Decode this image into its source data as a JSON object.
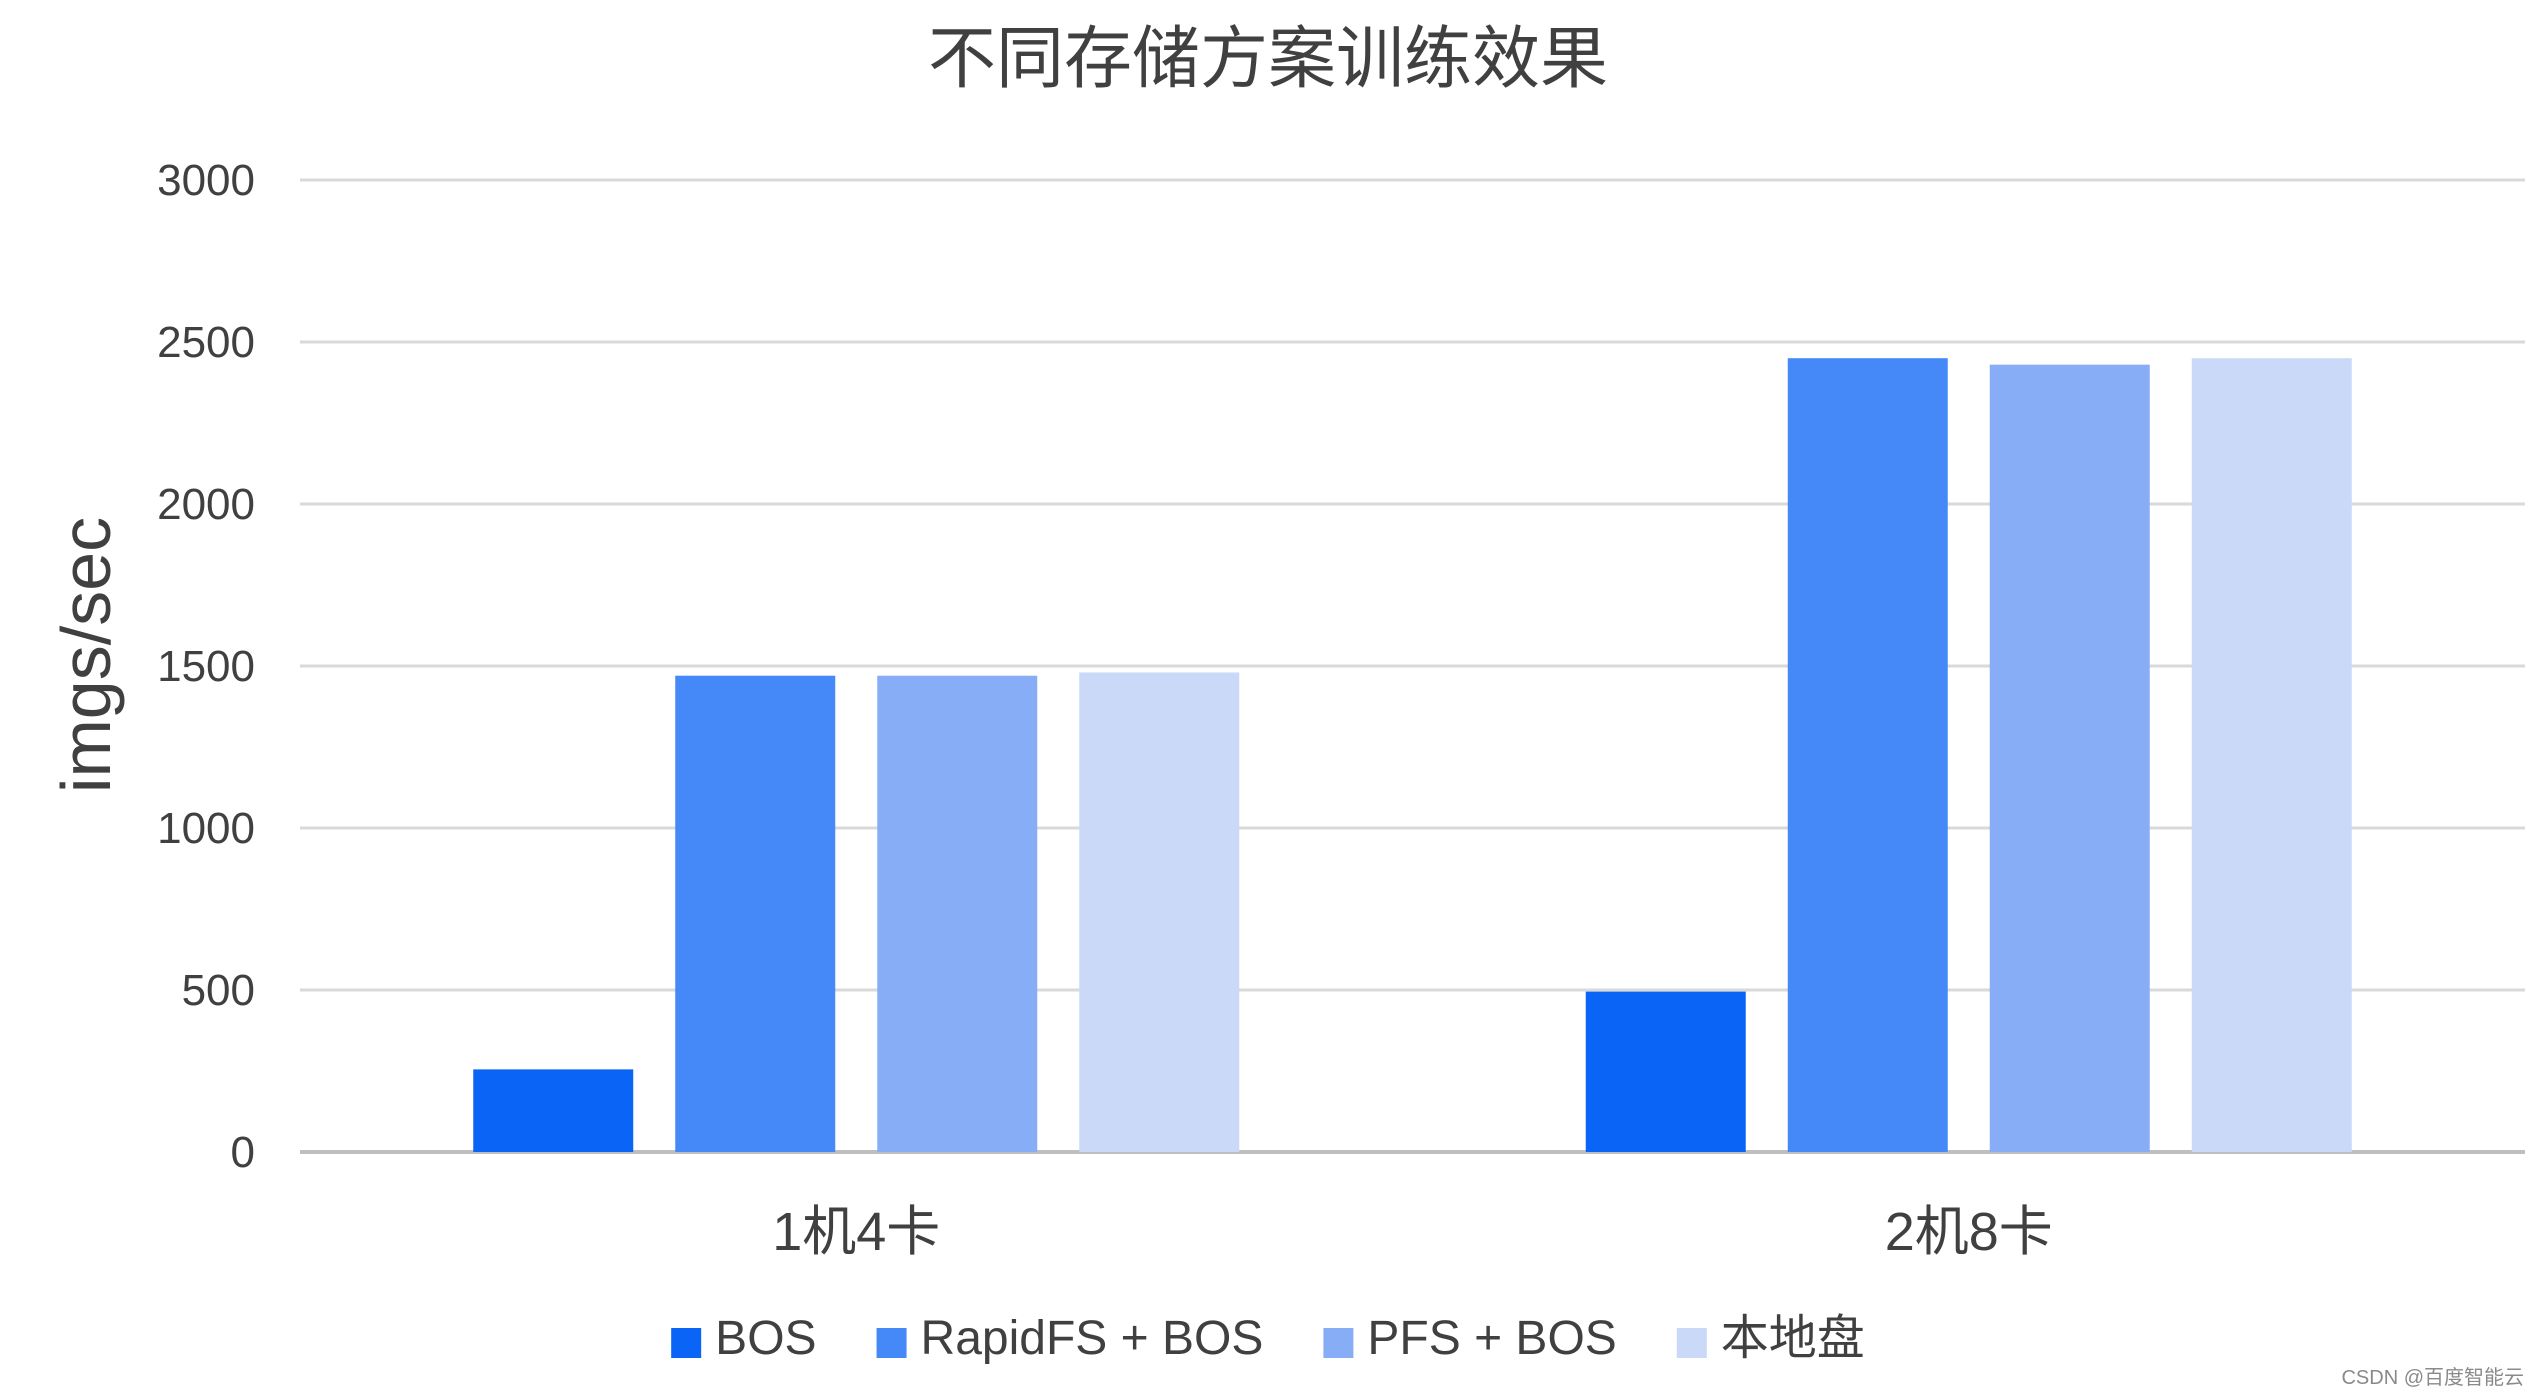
{
  "chart_data": {
    "type": "bar",
    "title": "不同存储方案训练效果",
    "ylabel": "imgs/sec",
    "xlabel": "",
    "ylim": [
      0,
      3000
    ],
    "yticks": [
      "0",
      "500",
      "1000",
      "1500",
      "2000",
      "2500",
      "3000"
    ],
    "ytick_values": [
      0,
      500,
      1000,
      1500,
      2000,
      2500,
      3000
    ],
    "categories": [
      "1机4卡",
      "2机8卡"
    ],
    "series": [
      {
        "name": "BOS",
        "values": [
          255,
          495
        ],
        "color": "#0a64f5"
      },
      {
        "name": "RapidFS + BOS",
        "values": [
          1470,
          2450
        ],
        "color": "#4588f7"
      },
      {
        "name": "PFS + BOS",
        "values": [
          1470,
          2430
        ],
        "color": "#87adf7"
      },
      {
        "name": "本地盘",
        "values": [
          1480,
          2450
        ],
        "color": "#c9d9f7"
      }
    ],
    "grid": true,
    "legend_position": "bottom"
  },
  "watermark": "CSDN @百度智能云"
}
